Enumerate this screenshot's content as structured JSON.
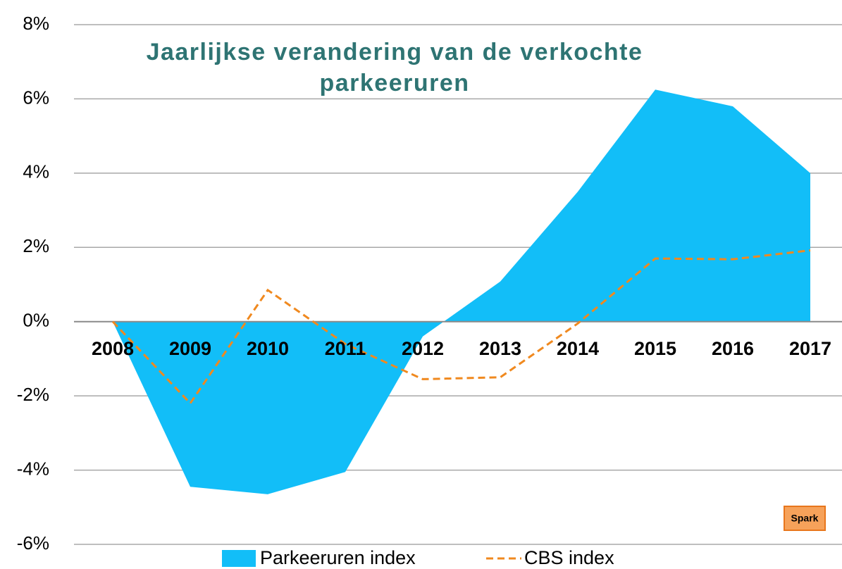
{
  "chart_data": {
    "type": "area",
    "title": "Jaarlijkse verandering van de verkochte parkeeruren",
    "categories": [
      "2008",
      "2009",
      "2010",
      "2011",
      "2012",
      "2013",
      "2014",
      "2015",
      "2016",
      "2017"
    ],
    "series": [
      {
        "name": "Parkeeruren index",
        "type": "area",
        "color": "#12bef8",
        "values": [
          0,
          -4.45,
          -4.65,
          -4.05,
          -0.4,
          1.08,
          3.5,
          6.25,
          5.8,
          4.0
        ]
      },
      {
        "name": "CBS index",
        "type": "line",
        "dashed": true,
        "color": "#f0891f",
        "values": [
          0,
          -2.2,
          0.85,
          -0.6,
          -1.55,
          -1.5,
          -0.05,
          1.7,
          1.68,
          1.92
        ]
      }
    ],
    "ylim": [
      -6,
      8
    ],
    "yticks": [
      {
        "value": -6,
        "label": "-6%"
      },
      {
        "value": -4,
        "label": "-4%"
      },
      {
        "value": -2,
        "label": "-2%"
      },
      {
        "value": 0,
        "label": "0%"
      },
      {
        "value": 2,
        "label": "2%"
      },
      {
        "value": 4,
        "label": "4%"
      },
      {
        "value": 6,
        "label": "6%"
      },
      {
        "value": 8,
        "label": "8%"
      }
    ],
    "grid": true,
    "legend": "bottom",
    "logo": "Spark"
  }
}
